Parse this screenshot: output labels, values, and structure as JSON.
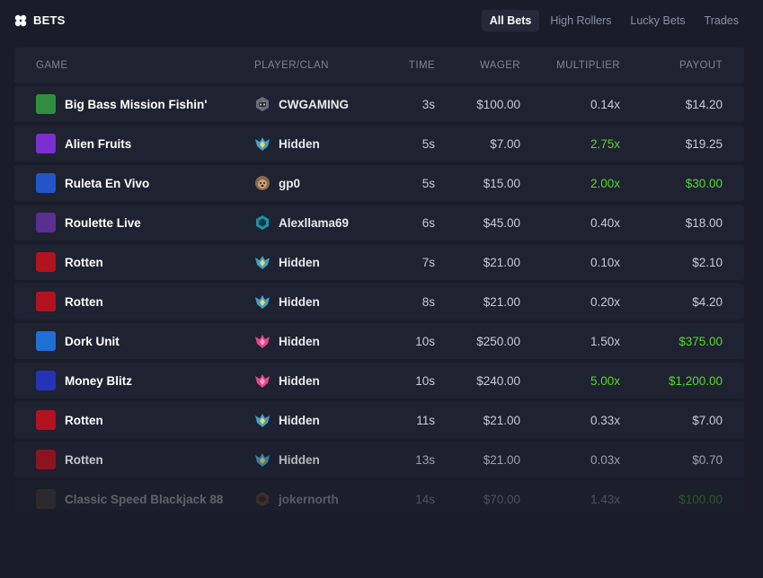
{
  "header": {
    "title": "BETS",
    "tabs": [
      {
        "label": "All Bets",
        "active": true
      },
      {
        "label": "High Rollers",
        "active": false
      },
      {
        "label": "Lucky Bets",
        "active": false
      },
      {
        "label": "Trades",
        "active": false
      }
    ]
  },
  "table": {
    "columns": {
      "game": "GAME",
      "player": "PLAYER/CLAN",
      "time": "TIME",
      "wager": "WAGER",
      "multiplier": "MULTIPLIER",
      "payout": "PAYOUT"
    },
    "rows": [
      {
        "game": "Big Bass Mission Fishin'",
        "thumb_color": "#2f8f3f",
        "player": "CWGAMING",
        "player_icon": "robot-avatar-icon",
        "time": "3s",
        "wager": "$100.00",
        "multiplier": "0.14x",
        "payout": "$14.20",
        "mult_win": false,
        "pay_win": false
      },
      {
        "game": "Alien Fruits",
        "thumb_color": "#7a2fd0",
        "player": "Hidden",
        "player_icon": "rank-badge-icon",
        "time": "5s",
        "wager": "$7.00",
        "multiplier": "2.75x",
        "payout": "$19.25",
        "mult_win": true,
        "pay_win": false
      },
      {
        "game": "Ruleta En Vivo",
        "thumb_color": "#2255c9",
        "player": "gp0",
        "player_icon": "dog-avatar-icon",
        "time": "5s",
        "wager": "$15.00",
        "multiplier": "2.00x",
        "payout": "$30.00",
        "mult_win": true,
        "pay_win": true
      },
      {
        "game": "Roulette Live",
        "thumb_color": "#5a2f8f",
        "player": "Alexllama69",
        "player_icon": "hexagon-badge-icon",
        "time": "6s",
        "wager": "$45.00",
        "multiplier": "0.40x",
        "payout": "$18.00",
        "mult_win": false,
        "pay_win": false
      },
      {
        "game": "Rotten",
        "thumb_color": "#b3121f",
        "player": "Hidden",
        "player_icon": "rank-badge-icon",
        "time": "7s",
        "wager": "$21.00",
        "multiplier": "0.10x",
        "payout": "$2.10",
        "mult_win": false,
        "pay_win": false
      },
      {
        "game": "Rotten",
        "thumb_color": "#b3121f",
        "player": "Hidden",
        "player_icon": "rank-badge-icon",
        "time": "8s",
        "wager": "$21.00",
        "multiplier": "0.20x",
        "payout": "$4.20",
        "mult_win": false,
        "pay_win": false
      },
      {
        "game": "Dork Unit",
        "thumb_color": "#1f6fd6",
        "player": "Hidden",
        "player_icon": "pink-rank-badge-icon",
        "time": "10s",
        "wager": "$250.00",
        "multiplier": "1.50x",
        "payout": "$375.00",
        "mult_win": false,
        "pay_win": true
      },
      {
        "game": "Money Blitz",
        "thumb_color": "#2533b8",
        "player": "Hidden",
        "player_icon": "pink-rank-badge-icon",
        "time": "10s",
        "wager": "$240.00",
        "multiplier": "5.00x",
        "payout": "$1,200.00",
        "mult_win": true,
        "pay_win": true
      },
      {
        "game": "Rotten",
        "thumb_color": "#b3121f",
        "player": "Hidden",
        "player_icon": "rank-badge-icon",
        "time": "11s",
        "wager": "$21.00",
        "multiplier": "0.33x",
        "payout": "$7.00",
        "mult_win": false,
        "pay_win": false
      },
      {
        "game": "Rotten",
        "thumb_color": "#b3121f",
        "player": "Hidden",
        "player_icon": "rank-badge-icon",
        "time": "13s",
        "wager": "$21.00",
        "multiplier": "0.03x",
        "payout": "$0.70",
        "mult_win": false,
        "pay_win": false
      },
      {
        "game": "Classic Speed Blackjack 88",
        "thumb_color": "#5b4a3a",
        "player": "jokernorth",
        "player_icon": "bronze-badge-icon",
        "time": "14s",
        "wager": "$70.00",
        "multiplier": "1.43x",
        "payout": "$100.00",
        "mult_win": false,
        "pay_win": true
      }
    ]
  },
  "colors": {
    "background": "#1a1d29",
    "row": "#1f2230",
    "win": "#57d92b",
    "muted": "#7e8498"
  }
}
